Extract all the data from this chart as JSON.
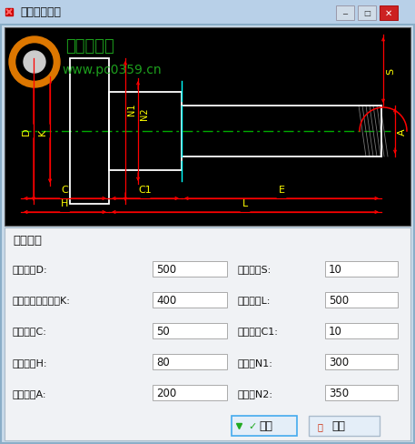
{
  "title": "法兰接管设计",
  "bg_color": "#c8daea",
  "cad_bg": "#000000",
  "section_title": "结构尺寸",
  "fields_left": [
    {
      "label": "法兰外径D:",
      "value": "500"
    },
    {
      "label": "螺栓孔中心圆直径K:",
      "value": "400"
    },
    {
      "label": "法兰厚度C:",
      "value": "50"
    },
    {
      "label": "法兰高度H:",
      "value": "80"
    },
    {
      "label": "管子直径A:",
      "value": "200"
    }
  ],
  "fields_right": [
    {
      "label": "管子壁厚S:",
      "value": "10"
    },
    {
      "label": "管子长度L:",
      "value": "500"
    },
    {
      "label": "钢板厚度C1:",
      "value": "10"
    },
    {
      "label": "法兰颈N1:",
      "value": "300"
    },
    {
      "label": "法兰颈N2:",
      "value": "350"
    }
  ],
  "btn_ok": "确定",
  "btn_cancel": "取消",
  "watermark_url": "www.pc0359.cn",
  "watermark_text": "润东软件园",
  "yellow": "#ffff00",
  "red": "#ff0000",
  "white": "#ffffff",
  "cyan": "#00ffff",
  "green_dash": "#00aa00"
}
